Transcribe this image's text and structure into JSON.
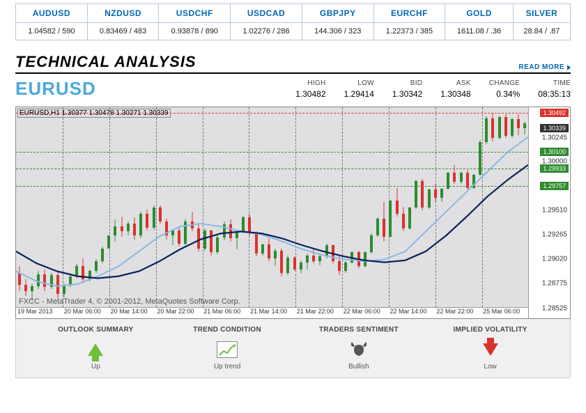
{
  "quotes": {
    "headers": [
      "AUDUSD",
      "NZDUSD",
      "USDCHF",
      "USDCAD",
      "GBPJPY",
      "EURCHF",
      "GOLD",
      "SILVER"
    ],
    "values": [
      "1.04582 / 590",
      "0.83469 / 483",
      "0.93878 / 890",
      "1.02276 / 286",
      "144.306 / 323",
      "1.22373 / 385",
      "1611.08 / .36",
      "28.84 / .87"
    ]
  },
  "section_title": "TECHNICAL ANALYSIS",
  "read_more": "READ MORE",
  "pair": "EURUSD",
  "stats": {
    "high": {
      "label": "HIGH",
      "value": "1.30482"
    },
    "low": {
      "label": "LOW",
      "value": "1.29414"
    },
    "bid": {
      "label": "BID",
      "value": "1.30342"
    },
    "ask": {
      "label": "ASK",
      "value": "1.30348"
    },
    "change": {
      "label": "CHANGE",
      "value": "0.34%"
    },
    "time": {
      "label": "TIME",
      "value": "08:35:13"
    }
  },
  "chart": {
    "info_text": "EURUSD,H1  1.30377 1.30478 1.30271 1.30339",
    "copyright": "FXCC - MetaTrader 4, © 2001-2012, MetaQuotes Software Corp.",
    "ymin": 1.28525,
    "ymax": 1.3055,
    "yticks": [
      1.30245,
      1.3,
      1.2951,
      1.29265,
      1.2902,
      1.28775,
      1.28525
    ],
    "price_tags": [
      {
        "value": 1.30492,
        "label": "1.30492",
        "color": "#d9322d"
      },
      {
        "value": 1.30339,
        "label": "1.30339",
        "color": "#333333"
      },
      {
        "value": 1.301,
        "label": "1.30100",
        "color": "#2e8b2e"
      },
      {
        "value": 1.29933,
        "label": "1.29933",
        "color": "#2e8b2e"
      },
      {
        "value": 1.29757,
        "label": "1.29757",
        "color": "#2e8b2e"
      }
    ],
    "hlines": [
      {
        "y": 1.30492,
        "color": "#d9322d"
      },
      {
        "y": 1.301,
        "color": "#2e8b2e"
      },
      {
        "y": 1.29933,
        "color": "#2e8b2e"
      },
      {
        "y": 1.29757,
        "color": "#2e8b2e"
      }
    ],
    "x_labels": [
      "19 Mar 2013",
      "20 Mar 06:00",
      "20 Mar 14:00",
      "20 Mar 22:00",
      "21 Mar 06:00",
      "21 Mar 14:00",
      "21 Mar 22:00",
      "22 Mar 06:00",
      "22 Mar 14:00",
      "22 Mar 22:00",
      "25 Mar 06:00"
    ],
    "vgrids_pct": [
      9.1,
      18.2,
      27.3,
      36.4,
      45.5,
      54.6,
      63.7,
      72.8,
      81.9,
      91.0
    ],
    "up_color": "#2e8b2e",
    "down_color": "#d9322d",
    "ma_dark": "#0b1f5b",
    "ma_light": "#8cb8e0",
    "candles": [
      {
        "x": 1,
        "o": 1.2888,
        "h": 1.2895,
        "l": 1.287,
        "c": 1.2876
      },
      {
        "x": 2,
        "o": 1.2876,
        "h": 1.2882,
        "l": 1.2865,
        "c": 1.287
      },
      {
        "x": 3,
        "o": 1.287,
        "h": 1.2878,
        "l": 1.286,
        "c": 1.2875
      },
      {
        "x": 4,
        "o": 1.2875,
        "h": 1.289,
        "l": 1.2872,
        "c": 1.2887
      },
      {
        "x": 5,
        "o": 1.2887,
        "h": 1.2892,
        "l": 1.287,
        "c": 1.2874
      },
      {
        "x": 6,
        "o": 1.2874,
        "h": 1.2888,
        "l": 1.2872,
        "c": 1.2886
      },
      {
        "x": 7,
        "o": 1.2886,
        "h": 1.289,
        "l": 1.2862,
        "c": 1.2867
      },
      {
        "x": 8,
        "o": 1.2867,
        "h": 1.2878,
        "l": 1.2864,
        "c": 1.2876
      },
      {
        "x": 9,
        "o": 1.2876,
        "h": 1.2888,
        "l": 1.2874,
        "c": 1.2885
      },
      {
        "x": 10,
        "o": 1.2885,
        "h": 1.2897,
        "l": 1.2883,
        "c": 1.2895
      },
      {
        "x": 11,
        "o": 1.2895,
        "h": 1.2903,
        "l": 1.2878,
        "c": 1.2882
      },
      {
        "x": 12,
        "o": 1.2882,
        "h": 1.2892,
        "l": 1.288,
        "c": 1.289
      },
      {
        "x": 13,
        "o": 1.289,
        "h": 1.2902,
        "l": 1.2888,
        "c": 1.29
      },
      {
        "x": 14,
        "o": 1.29,
        "h": 1.2915,
        "l": 1.2898,
        "c": 1.2913
      },
      {
        "x": 15,
        "o": 1.2913,
        "h": 1.2926,
        "l": 1.2913,
        "c": 1.2926
      },
      {
        "x": 16,
        "o": 1.2926,
        "h": 1.2942,
        "l": 1.292,
        "c": 1.2935
      },
      {
        "x": 17,
        "o": 1.2935,
        "h": 1.2945,
        "l": 1.2925,
        "c": 1.293
      },
      {
        "x": 18,
        "o": 1.293,
        "h": 1.294,
        "l": 1.2926,
        "c": 1.2938
      },
      {
        "x": 19,
        "o": 1.2938,
        "h": 1.2944,
        "l": 1.2922,
        "c": 1.2926
      },
      {
        "x": 20,
        "o": 1.2926,
        "h": 1.295,
        "l": 1.2923,
        "c": 1.2948
      },
      {
        "x": 21,
        "o": 1.2948,
        "h": 1.2952,
        "l": 1.2931,
        "c": 1.2934
      },
      {
        "x": 22,
        "o": 1.2934,
        "h": 1.2956,
        "l": 1.2932,
        "c": 1.2954
      },
      {
        "x": 23,
        "o": 1.2954,
        "h": 1.2956,
        "l": 1.2938,
        "c": 1.294
      },
      {
        "x": 24,
        "o": 1.294,
        "h": 1.2943,
        "l": 1.2922,
        "c": 1.2926
      },
      {
        "x": 25,
        "o": 1.2926,
        "h": 1.2932,
        "l": 1.2916,
        "c": 1.2931
      },
      {
        "x": 26,
        "o": 1.2931,
        "h": 1.2934,
        "l": 1.2915,
        "c": 1.2918
      },
      {
        "x": 27,
        "o": 1.2918,
        "h": 1.2942,
        "l": 1.2916,
        "c": 1.294
      },
      {
        "x": 28,
        "o": 1.294,
        "h": 1.295,
        "l": 1.293,
        "c": 1.2933
      },
      {
        "x": 29,
        "o": 1.2933,
        "h": 1.2937,
        "l": 1.291,
        "c": 1.2913
      },
      {
        "x": 30,
        "o": 1.2913,
        "h": 1.2933,
        "l": 1.2911,
        "c": 1.2931
      },
      {
        "x": 31,
        "o": 1.2931,
        "h": 1.2932,
        "l": 1.2906,
        "c": 1.2909
      },
      {
        "x": 32,
        "o": 1.2909,
        "h": 1.2926,
        "l": 1.2907,
        "c": 1.2924
      },
      {
        "x": 33,
        "o": 1.2924,
        "h": 1.294,
        "l": 1.2921,
        "c": 1.2937
      },
      {
        "x": 34,
        "o": 1.2937,
        "h": 1.2942,
        "l": 1.292,
        "c": 1.2923
      },
      {
        "x": 35,
        "o": 1.2923,
        "h": 1.2932,
        "l": 1.2912,
        "c": 1.293
      },
      {
        "x": 36,
        "o": 1.293,
        "h": 1.2946,
        "l": 1.2928,
        "c": 1.2944
      },
      {
        "x": 37,
        "o": 1.2944,
        "h": 1.2948,
        "l": 1.2926,
        "c": 1.2929
      },
      {
        "x": 38,
        "o": 1.2929,
        "h": 1.293,
        "l": 1.2905,
        "c": 1.2908
      },
      {
        "x": 39,
        "o": 1.2908,
        "h": 1.2918,
        "l": 1.2906,
        "c": 1.2917
      },
      {
        "x": 40,
        "o": 1.2917,
        "h": 1.2923,
        "l": 1.29,
        "c": 1.2903
      },
      {
        "x": 41,
        "o": 1.2903,
        "h": 1.2913,
        "l": 1.2895,
        "c": 1.2911
      },
      {
        "x": 42,
        "o": 1.2911,
        "h": 1.2913,
        "l": 1.2885,
        "c": 1.2888
      },
      {
        "x": 43,
        "o": 1.2888,
        "h": 1.2906,
        "l": 1.2886,
        "c": 1.2904
      },
      {
        "x": 44,
        "o": 1.2904,
        "h": 1.2905,
        "l": 1.289,
        "c": 1.2892
      },
      {
        "x": 45,
        "o": 1.2892,
        "h": 1.2901,
        "l": 1.2888,
        "c": 1.2899
      },
      {
        "x": 46,
        "o": 1.2899,
        "h": 1.2908,
        "l": 1.2892,
        "c": 1.2906
      },
      {
        "x": 47,
        "o": 1.2906,
        "h": 1.2912,
        "l": 1.2898,
        "c": 1.29
      },
      {
        "x": 48,
        "o": 1.29,
        "h": 1.2907,
        "l": 1.2896,
        "c": 1.2905
      },
      {
        "x": 49,
        "o": 1.2905,
        "h": 1.2918,
        "l": 1.2903,
        "c": 1.2916
      },
      {
        "x": 50,
        "o": 1.2916,
        "h": 1.2917,
        "l": 1.2898,
        "c": 1.29
      },
      {
        "x": 51,
        "o": 1.29,
        "h": 1.2905,
        "l": 1.2886,
        "c": 1.289
      },
      {
        "x": 52,
        "o": 1.289,
        "h": 1.29,
        "l": 1.2888,
        "c": 1.2899
      },
      {
        "x": 53,
        "o": 1.2899,
        "h": 1.291,
        "l": 1.2898,
        "c": 1.2909
      },
      {
        "x": 54,
        "o": 1.2909,
        "h": 1.2911,
        "l": 1.2893,
        "c": 1.2895
      },
      {
        "x": 55,
        "o": 1.2895,
        "h": 1.291,
        "l": 1.2894,
        "c": 1.2909
      },
      {
        "x": 56,
        "o": 1.2909,
        "h": 1.2928,
        "l": 1.2908,
        "c": 1.2926
      },
      {
        "x": 57,
        "o": 1.2926,
        "h": 1.2944,
        "l": 1.2925,
        "c": 1.2943
      },
      {
        "x": 58,
        "o": 1.2943,
        "h": 1.296,
        "l": 1.292,
        "c": 1.2925
      },
      {
        "x": 59,
        "o": 1.2925,
        "h": 1.2962,
        "l": 1.2924,
        "c": 1.2961
      },
      {
        "x": 60,
        "o": 1.2961,
        "h": 1.2974,
        "l": 1.2945,
        "c": 1.2948
      },
      {
        "x": 61,
        "o": 1.2948,
        "h": 1.2955,
        "l": 1.293,
        "c": 1.2933
      },
      {
        "x": 62,
        "o": 1.2933,
        "h": 1.2955,
        "l": 1.2932,
        "c": 1.2954
      },
      {
        "x": 63,
        "o": 1.2954,
        "h": 1.2982,
        "l": 1.2953,
        "c": 1.2981
      },
      {
        "x": 64,
        "o": 1.2981,
        "h": 1.2983,
        "l": 1.2951,
        "c": 1.2954
      },
      {
        "x": 65,
        "o": 1.2954,
        "h": 1.2973,
        "l": 1.2953,
        "c": 1.2972
      },
      {
        "x": 66,
        "o": 1.2972,
        "h": 1.2978,
        "l": 1.296,
        "c": 1.2964
      },
      {
        "x": 67,
        "o": 1.2964,
        "h": 1.2974,
        "l": 1.296,
        "c": 1.2973
      },
      {
        "x": 68,
        "o": 1.2973,
        "h": 1.299,
        "l": 1.2972,
        "c": 1.2989
      },
      {
        "x": 69,
        "o": 1.2989,
        "h": 1.2997,
        "l": 1.2978,
        "c": 1.298
      },
      {
        "x": 70,
        "o": 1.298,
        "h": 1.299,
        "l": 1.2978,
        "c": 1.2989
      },
      {
        "x": 71,
        "o": 1.2989,
        "h": 1.2992,
        "l": 1.2972,
        "c": 1.2974
      },
      {
        "x": 72,
        "o": 1.2974,
        "h": 1.2988,
        "l": 1.2973,
        "c": 1.2987
      },
      {
        "x": 73,
        "o": 1.2987,
        "h": 1.3022,
        "l": 1.2986,
        "c": 1.302
      },
      {
        "x": 74,
        "o": 1.302,
        "h": 1.3046,
        "l": 1.3018,
        "c": 1.3044
      },
      {
        "x": 75,
        "o": 1.3044,
        "h": 1.3049,
        "l": 1.3021,
        "c": 1.3024
      },
      {
        "x": 76,
        "o": 1.3024,
        "h": 1.3046,
        "l": 1.3023,
        "c": 1.3045
      },
      {
        "x": 77,
        "o": 1.3045,
        "h": 1.3048,
        "l": 1.3024,
        "c": 1.3026
      },
      {
        "x": 78,
        "o": 1.3026,
        "h": 1.3044,
        "l": 1.3024,
        "c": 1.3043
      },
      {
        "x": 79,
        "o": 1.3043,
        "h": 1.3048,
        "l": 1.3027,
        "c": 1.30339
      },
      {
        "x": 80,
        "o": 1.30339,
        "h": 1.304,
        "l": 1.3028,
        "c": 1.3039
      }
    ],
    "ma_light_y": [
      1.289,
      1.288,
      1.2875,
      1.2877,
      1.2885,
      1.2895,
      1.291,
      1.2925,
      1.2935,
      1.2938,
      1.2935,
      1.293,
      1.2927,
      1.292,
      1.2912,
      1.2906,
      1.2902,
      1.29,
      1.2902,
      1.291,
      1.293,
      1.295,
      1.297,
      1.299,
      1.301,
      1.3025
    ],
    "ma_dark_y": [
      1.291,
      1.2898,
      1.289,
      1.2885,
      1.2883,
      1.2885,
      1.289,
      1.29,
      1.2912,
      1.2922,
      1.2928,
      1.293,
      1.2928,
      1.2923,
      1.2916,
      1.291,
      1.2905,
      1.2901,
      1.2899,
      1.2901,
      1.291,
      1.2926,
      1.2945,
      1.2965,
      1.2982,
      1.2997
    ]
  },
  "summary": {
    "outlook": {
      "title": "OUTLOOK SUMMARY",
      "label": "Up"
    },
    "trend": {
      "title": "TREND CONDITION",
      "label": "Up trend"
    },
    "sentiment": {
      "title": "TRADERS SENTIMENT",
      "label": "Bullish"
    },
    "volatility": {
      "title": "IMPLIED VOLATILITY",
      "label": "Low"
    }
  }
}
